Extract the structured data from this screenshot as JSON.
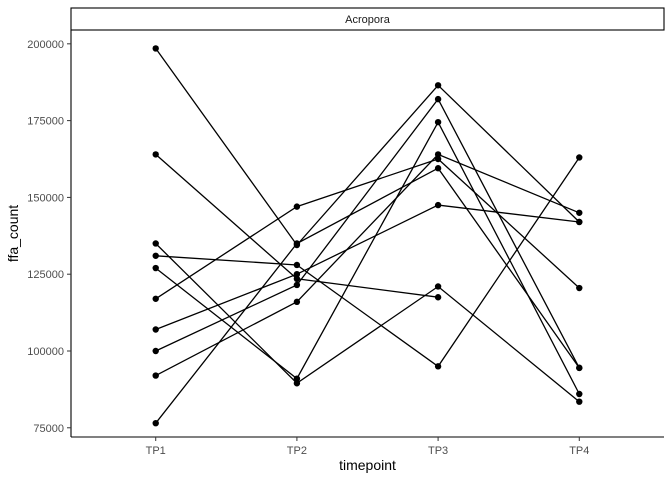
{
  "chart_data": {
    "type": "line",
    "facet_label": "Acropora",
    "xlabel": "timepoint",
    "ylabel": "ffa_count",
    "categories": [
      "TP1",
      "TP2",
      "TP3",
      "TP4"
    ],
    "ylim": [
      72000,
      204500
    ],
    "yticks": [
      75000,
      100000,
      125000,
      150000,
      175000,
      200000
    ],
    "ytick_labels": [
      "75000",
      "100000",
      "125000",
      "150000",
      "175000",
      "200000"
    ],
    "grid": false,
    "legend": "none",
    "series": [
      {
        "values": [
          198500,
          134500,
          186500,
          142000
        ]
      },
      {
        "values": [
          164000,
          123500,
          117500,
          null
        ]
      },
      {
        "values": [
          135000,
          89500,
          121000,
          83500
        ]
      },
      {
        "values": [
          131000,
          128000,
          95000,
          163000
        ]
      },
      {
        "values": [
          127000,
          91000,
          174500,
          86000
        ]
      },
      {
        "values": [
          117000,
          147000,
          162500,
          120500
        ]
      },
      {
        "values": [
          107000,
          125000,
          147500,
          142000
        ]
      },
      {
        "values": [
          100000,
          121500,
          182000,
          94500
        ]
      },
      {
        "values": [
          92000,
          116000,
          164000,
          145000
        ]
      },
      {
        "values": [
          76500,
          135000,
          159500,
          94500
        ]
      }
    ]
  },
  "colors": {
    "line": "#000000",
    "point": "#000000",
    "axis": "#000000",
    "strip_fill": "#ffffff",
    "strip_border": "#000000"
  }
}
